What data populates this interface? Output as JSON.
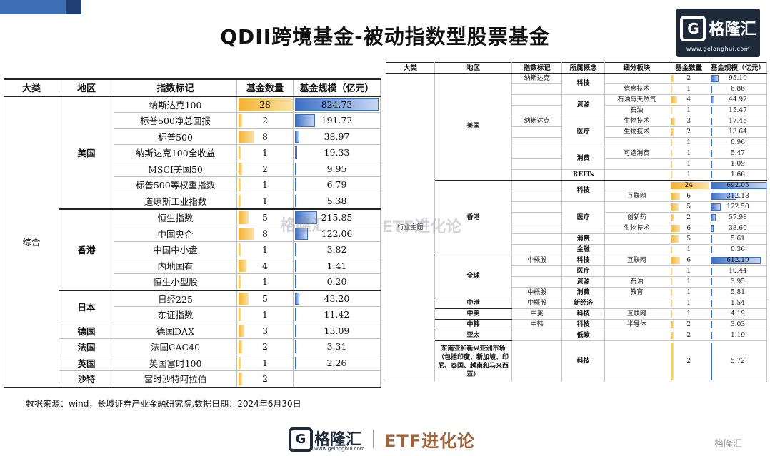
{
  "title": "QDII跨境基金-被动指数型股票基金",
  "logo": {
    "name": "格隆汇",
    "url": "www.gelonghui.com",
    "glyph": "G"
  },
  "left_table": {
    "headers": [
      "大类",
      "地区",
      "指数标记",
      "基金数量",
      "基金规模（亿元）"
    ],
    "category": "综合",
    "regions": [
      {
        "name": "美国",
        "rows": [
          {
            "index": "纳斯达克100",
            "count": "28",
            "scale": "824.73",
            "count_frac": 0.97,
            "scale_frac": 0.97
          },
          {
            "index": "标普500净总回报",
            "count": "2",
            "scale": "191.72",
            "count_frac": 0.07,
            "scale_frac": 0.23
          },
          {
            "index": "标普500",
            "count": "8",
            "scale": "38.97",
            "count_frac": 0.28,
            "scale_frac": 0.05
          },
          {
            "index": "纳斯达克100全收益",
            "count": "1",
            "scale": "19.33",
            "count_frac": 0.035,
            "scale_frac": 0.023
          },
          {
            "index": "MSCI美国50",
            "count": "2",
            "scale": "9.95",
            "count_frac": 0.07,
            "scale_frac": 0.012
          },
          {
            "index": "标普500等权重指数",
            "count": "1",
            "scale": "6.79",
            "count_frac": 0.035,
            "scale_frac": 0.008
          },
          {
            "index": "道琼斯工业指数",
            "count": "1",
            "scale": "5.38",
            "count_frac": 0.035,
            "scale_frac": 0.006
          }
        ]
      },
      {
        "name": "香港",
        "rows": [
          {
            "index": "恒生指数",
            "count": "5",
            "scale": "215.85",
            "count_frac": 0.18,
            "scale_frac": 0.26
          },
          {
            "index": "中国央企",
            "count": "8",
            "scale": "122.06",
            "count_frac": 0.28,
            "scale_frac": 0.15
          },
          {
            "index": "中国中小盘",
            "count": "1",
            "scale": "3.82",
            "count_frac": 0.035,
            "scale_frac": 0.005
          },
          {
            "index": "内地国有",
            "count": "4",
            "scale": "1.41",
            "count_frac": 0.14,
            "scale_frac": 0.002
          },
          {
            "index": "恒生小型股",
            "count": "1",
            "scale": "0.20",
            "count_frac": 0.035,
            "scale_frac": 0.001
          }
        ]
      },
      {
        "name": "日本",
        "rows": [
          {
            "index": "日经225",
            "count": "5",
            "scale": "43.20",
            "count_frac": 0.18,
            "scale_frac": 0.052
          },
          {
            "index": "东证指数",
            "count": "1",
            "scale": "11.42",
            "count_frac": 0.035,
            "scale_frac": 0.014
          }
        ]
      },
      {
        "name": "德国",
        "rows": [
          {
            "index": "德国DAX",
            "count": "3",
            "scale": "13.09",
            "count_frac": 0.1,
            "scale_frac": 0.016
          }
        ]
      },
      {
        "name": "法国",
        "rows": [
          {
            "index": "法国CAC40",
            "count": "2",
            "scale": "3.31",
            "count_frac": 0.07,
            "scale_frac": 0.004
          }
        ]
      },
      {
        "name": "英国",
        "rows": [
          {
            "index": "英国富时100",
            "count": "1",
            "scale": "2.26",
            "count_frac": 0.035,
            "scale_frac": 0.003
          }
        ]
      },
      {
        "name": "沙特",
        "rows": [
          {
            "index": "富时沙特阿拉伯",
            "count": "2",
            "scale": "",
            "count_frac": 0.07,
            "scale_frac": 0
          }
        ]
      }
    ]
  },
  "right_table": {
    "headers": [
      "大类",
      "地区",
      "指数标记",
      "所属概念",
      "细分板块",
      "基金数量",
      "基金规模（亿元）"
    ],
    "category": "行业主题",
    "groups": [
      {
        "region": "美国",
        "rows": [
          {
            "index": "纳斯达克",
            "concept": "科技",
            "sector": "",
            "count": "2",
            "scale": "95.19",
            "cf": 0.08,
            "sf": 0.14
          },
          {
            "index": "",
            "concept": "",
            "sector": "信息技术",
            "count": "1",
            "scale": "6.86",
            "cf": 0.04,
            "sf": 0.01
          },
          {
            "index": "",
            "concept": "资源",
            "sector": "石油与天然气",
            "count": "4",
            "scale": "44.92",
            "cf": 0.17,
            "sf": 0.065
          },
          {
            "index": "",
            "concept": "",
            "sector": "石油",
            "count": "1",
            "scale": "15.47",
            "cf": 0.04,
            "sf": 0.022
          },
          {
            "index": "纳斯达克",
            "concept": "医疗",
            "sector": "生物技术",
            "count": "3",
            "scale": "17.45",
            "cf": 0.12,
            "sf": 0.025
          },
          {
            "index": "",
            "concept": "",
            "sector": "生物技术",
            "count": "2",
            "scale": "13.64",
            "cf": 0.08,
            "sf": 0.02
          },
          {
            "index": "",
            "concept": "",
            "sector": "",
            "count": "1",
            "scale": "0.96",
            "cf": 0.04,
            "sf": 0.0014
          },
          {
            "index": "",
            "concept": "消费",
            "sector": "可选消费",
            "count": "1",
            "scale": "5.47",
            "cf": 0.04,
            "sf": 0.008
          },
          {
            "index": "",
            "concept": "",
            "sector": "",
            "count": "1",
            "scale": "1.09",
            "cf": 0.04,
            "sf": 0.0016
          },
          {
            "index": "",
            "concept": "REITs",
            "sector": "",
            "count": "1",
            "scale": "1.66",
            "cf": 0.04,
            "sf": 0.0024
          }
        ]
      },
      {
        "region": "香港",
        "rows": [
          {
            "index": "",
            "concept": "科技",
            "sector": "",
            "count": "24",
            "scale": "692.05",
            "cf": 0.97,
            "sf": 0.97
          },
          {
            "index": "",
            "concept": "",
            "sector": "互联网",
            "count": "6",
            "scale": "312.18",
            "cf": 0.25,
            "sf": 0.45
          },
          {
            "index": "",
            "concept": "医疗",
            "sector": "",
            "count": "5",
            "scale": "122.50",
            "cf": 0.2,
            "sf": 0.18
          },
          {
            "index": "",
            "concept": "",
            "sector": "创新药",
            "count": "2",
            "scale": "57.98",
            "cf": 0.08,
            "sf": 0.084
          },
          {
            "index": "",
            "concept": "",
            "sector": "生物技术",
            "count": "6",
            "scale": "33.60",
            "cf": 0.25,
            "sf": 0.049
          },
          {
            "index": "",
            "concept": "消费",
            "sector": "",
            "count": "5",
            "scale": "5.61",
            "cf": 0.2,
            "sf": 0.008
          },
          {
            "index": "",
            "concept": "金融",
            "sector": "",
            "count": "1",
            "scale": "0.36",
            "cf": 0.04,
            "sf": 0.0005
          }
        ]
      },
      {
        "region": "全球",
        "rows": [
          {
            "index": "中概股",
            "concept": "科技",
            "sector": "互联网",
            "count": "6",
            "scale": "612.19",
            "cf": 0.25,
            "sf": 0.88
          },
          {
            "index": "",
            "concept": "医疗",
            "sector": "",
            "count": "1",
            "scale": "10.44",
            "cf": 0.04,
            "sf": 0.015
          },
          {
            "index": "",
            "concept": "资源",
            "sector": "石油",
            "count": "1",
            "scale": "3.95",
            "cf": 0.04,
            "sf": 0.006
          },
          {
            "index": "中概股",
            "concept": "消费",
            "sector": "教育",
            "count": "1",
            "scale": "5.81",
            "cf": 0.04,
            "sf": 0.008
          }
        ]
      },
      {
        "region": "中港",
        "rows": [
          {
            "index": "中概股",
            "concept": "新经济",
            "sector": "",
            "count": "1",
            "scale": "1.54",
            "cf": 0.04,
            "sf": 0.002
          }
        ]
      },
      {
        "region": "中美",
        "rows": [
          {
            "index": "中美",
            "concept": "科技",
            "sector": "互联网",
            "count": "1",
            "scale": "4.19",
            "cf": 0.04,
            "sf": 0.006
          }
        ]
      },
      {
        "region": "中韩",
        "rows": [
          {
            "index": "中韩",
            "concept": "科技",
            "sector": "半导体",
            "count": "2",
            "scale": "3.03",
            "cf": 0.08,
            "sf": 0.004
          }
        ]
      },
      {
        "region": "亚太",
        "rows": [
          {
            "index": "",
            "concept": "低碳",
            "sector": "",
            "count": "2",
            "scale": "1.19",
            "cf": 0.08,
            "sf": 0.0017
          }
        ]
      },
      {
        "region": "东南亚和新兴亚洲市场（包括印度、新加坡、印尼、泰国、越南和马来西亚）",
        "tall": true,
        "rows": [
          {
            "index": "",
            "concept": "科技",
            "sector": "",
            "count": "2",
            "scale": "5.72",
            "cf": 0.08,
            "sf": 0.008
          }
        ]
      }
    ]
  },
  "source": "数据来源：wind，长城证券产业金融研究院,数据日期：2024年6月30日",
  "footer": {
    "logo_name": "格隆汇",
    "logo_url": "www.gelonghui.com",
    "etf": "ETF进化论",
    "corner": "格隆汇"
  },
  "watermark": {
    "logo": "格隆汇",
    "etf": "ETF进化论"
  }
}
